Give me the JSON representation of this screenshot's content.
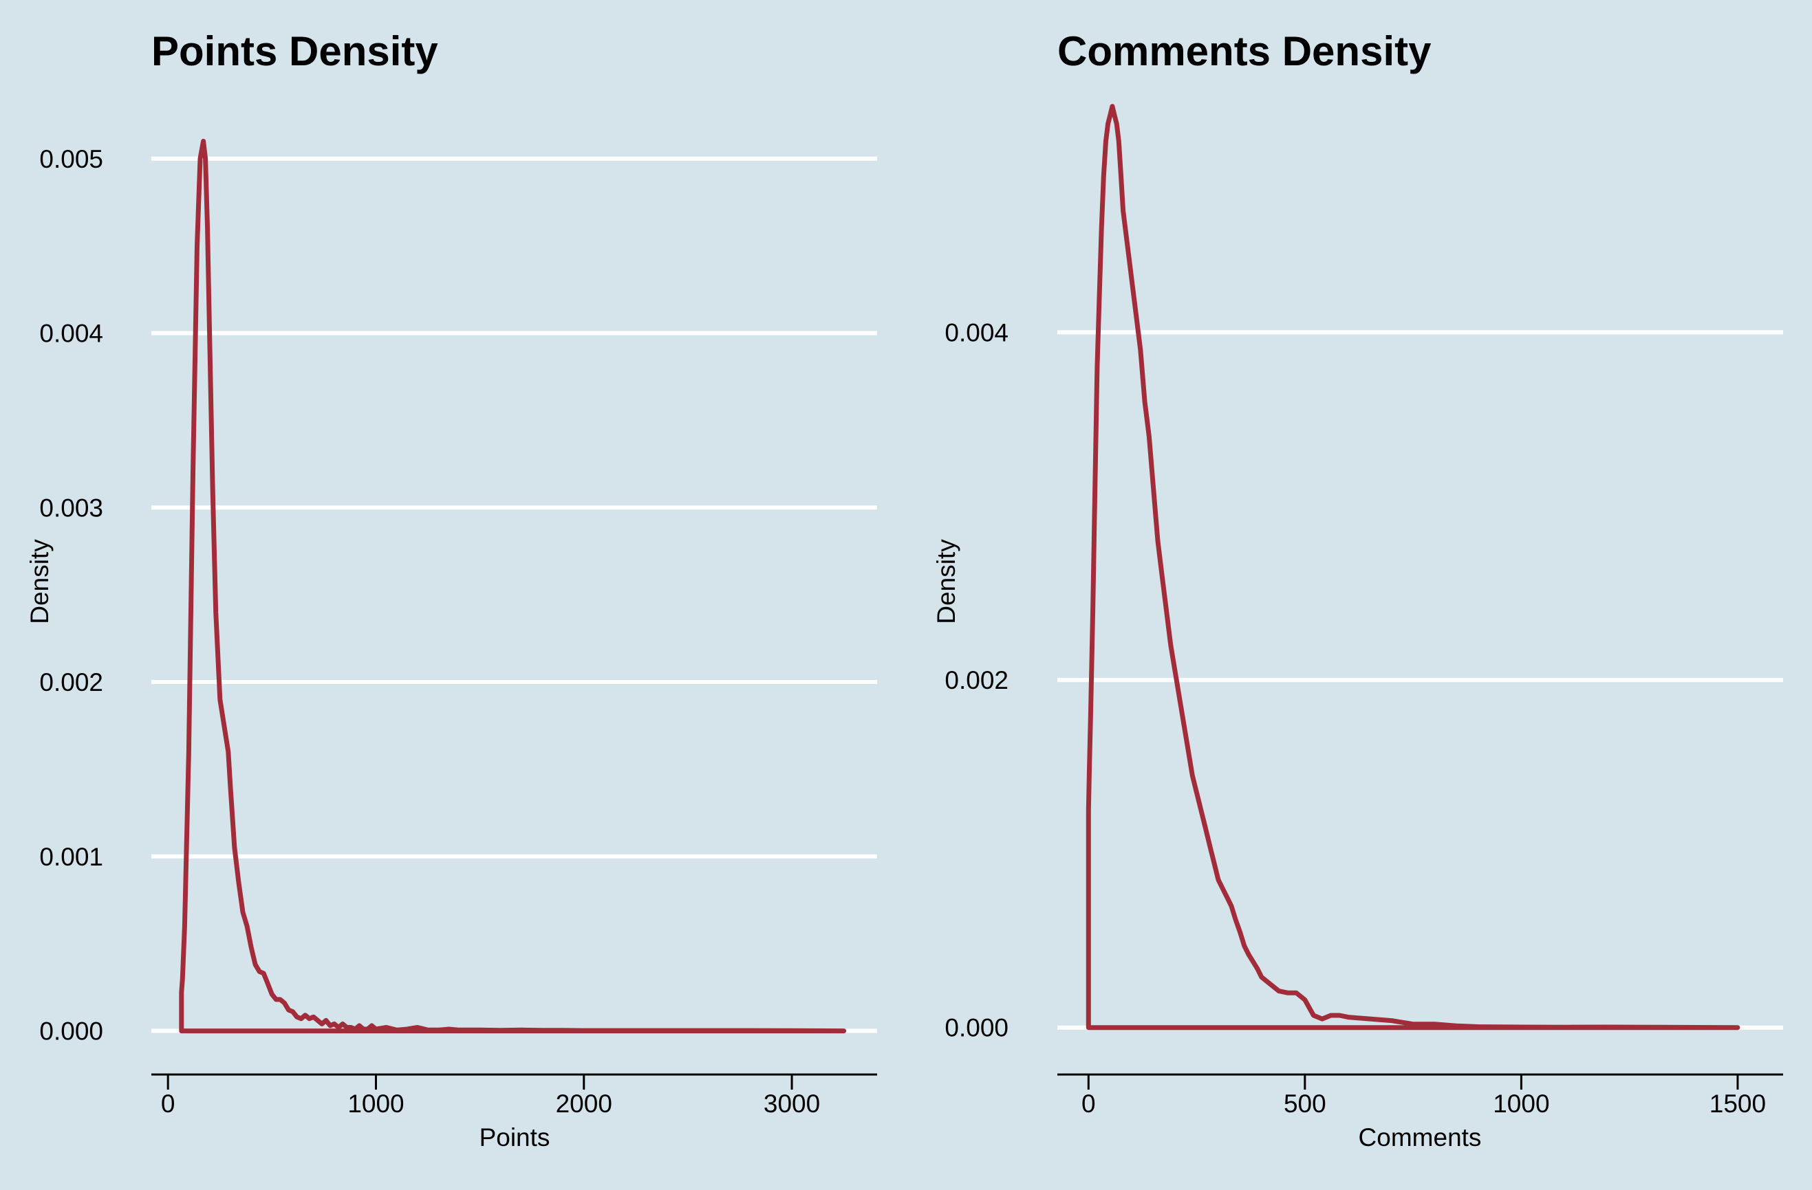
{
  "chart_data": [
    {
      "type": "area",
      "title": "Points Density",
      "xlabel": "Points",
      "ylabel": "Density",
      "xlim": [
        -80,
        3410
      ],
      "ylim": [
        -0.00025,
        0.0052
      ],
      "x_ticks": [
        0,
        1000,
        2000,
        3000
      ],
      "x_tick_labels": [
        "0",
        "1000",
        "2000",
        "3000"
      ],
      "y_ticks": [
        0,
        0.001,
        0.002,
        0.003,
        0.004,
        0.005
      ],
      "y_tick_labels": [
        "0.000",
        "0.001",
        "0.002",
        "0.003",
        "0.004",
        "0.005"
      ],
      "grid": "horizontal",
      "line_color": "#a32c3a",
      "background": "#d5e4eb",
      "x": [
        65,
        70,
        80,
        100,
        120,
        140,
        155,
        170,
        180,
        190,
        200,
        215,
        230,
        250,
        270,
        290,
        300,
        320,
        340,
        360,
        380,
        400,
        420,
        440,
        460,
        480,
        500,
        520,
        540,
        560,
        580,
        600,
        620,
        640,
        660,
        680,
        700,
        720,
        740,
        760,
        780,
        800,
        820,
        840,
        860,
        880,
        900,
        920,
        940,
        960,
        980,
        1000,
        1050,
        1100,
        1150,
        1200,
        1250,
        1300,
        1350,
        1400,
        1500,
        1600,
        1700,
        1800,
        1900,
        2000,
        2200,
        2400,
        2600,
        2800,
        3000,
        3250
      ],
      "y": [
        0.00022,
        0.0003,
        0.0006,
        0.0016,
        0.0032,
        0.0045,
        0.005,
        0.0051,
        0.005,
        0.0046,
        0.004,
        0.0031,
        0.0024,
        0.0019,
        0.00175,
        0.0016,
        0.0014,
        0.00105,
        0.00085,
        0.00068,
        0.0006,
        0.00048,
        0.00038,
        0.00034,
        0.00033,
        0.00027,
        0.00021,
        0.00018,
        0.00018,
        0.00016,
        0.00012,
        0.00011,
        8e-05,
        7e-05,
        9e-05,
        7e-05,
        8e-05,
        6e-05,
        4e-05,
        6e-05,
        3e-05,
        4e-05,
        2e-05,
        4e-05,
        2e-05,
        2e-05,
        1e-05,
        3e-05,
        1e-05,
        1e-05,
        3e-05,
        1e-05,
        2e-05,
        5e-06,
        1e-05,
        2e-05,
        5e-06,
        5e-06,
        1e-05,
        5e-06,
        5e-06,
        3e-06,
        5e-06,
        3e-06,
        3e-06,
        2e-06,
        2e-06,
        2e-06,
        2e-06,
        2e-06,
        1e-06,
        0.0
      ]
    },
    {
      "type": "area",
      "title": "Comments Density",
      "xlabel": "Comments",
      "ylabel": "Density",
      "xlim": [
        -72,
        1605
      ],
      "ylim": [
        -0.00027,
        0.0052
      ],
      "x_ticks": [
        0,
        500,
        1000,
        1500
      ],
      "x_tick_labels": [
        "0",
        "500",
        "1000",
        "1500"
      ],
      "y_ticks": [
        0,
        0.002,
        0.004
      ],
      "y_tick_labels": [
        "0.000",
        "0.002",
        "0.004"
      ],
      "grid": "horizontal",
      "line_color": "#a32c3a",
      "background": "#d5e4eb",
      "x": [
        0,
        2,
        5,
        10,
        15,
        20,
        25,
        30,
        35,
        40,
        45,
        50,
        55,
        60,
        65,
        70,
        75,
        80,
        90,
        100,
        110,
        120,
        130,
        140,
        150,
        160,
        170,
        180,
        190,
        200,
        210,
        220,
        230,
        240,
        250,
        260,
        270,
        280,
        290,
        300,
        310,
        320,
        330,
        340,
        350,
        360,
        370,
        380,
        390,
        400,
        420,
        440,
        460,
        480,
        500,
        520,
        540,
        560,
        580,
        600,
        650,
        700,
        750,
        800,
        850,
        900,
        1000,
        1100,
        1200,
        1300,
        1400,
        1500
      ],
      "y": [
        0.00125,
        0.0015,
        0.0018,
        0.0024,
        0.0031,
        0.0038,
        0.0042,
        0.0046,
        0.0049,
        0.0051,
        0.0052,
        0.00525,
        0.0053,
        0.00525,
        0.0052,
        0.0051,
        0.0049,
        0.0047,
        0.0045,
        0.0043,
        0.0041,
        0.0039,
        0.0036,
        0.0034,
        0.0031,
        0.0028,
        0.0026,
        0.0024,
        0.0022,
        0.00205,
        0.0019,
        0.00175,
        0.0016,
        0.00145,
        0.00135,
        0.00125,
        0.00115,
        0.00105,
        0.00095,
        0.00085,
        0.0008,
        0.00075,
        0.0007,
        0.00062,
        0.00055,
        0.00047,
        0.00042,
        0.00038,
        0.00034,
        0.00029,
        0.00025,
        0.00021,
        0.0002,
        0.0002,
        0.00016,
        7e-05,
        5e-05,
        7e-05,
        7e-05,
        6e-05,
        5e-05,
        4e-05,
        2e-05,
        2e-05,
        1e-05,
        5e-06,
        3e-06,
        2e-06,
        3e-06,
        2e-06,
        1e-06,
        0.0
      ]
    }
  ]
}
